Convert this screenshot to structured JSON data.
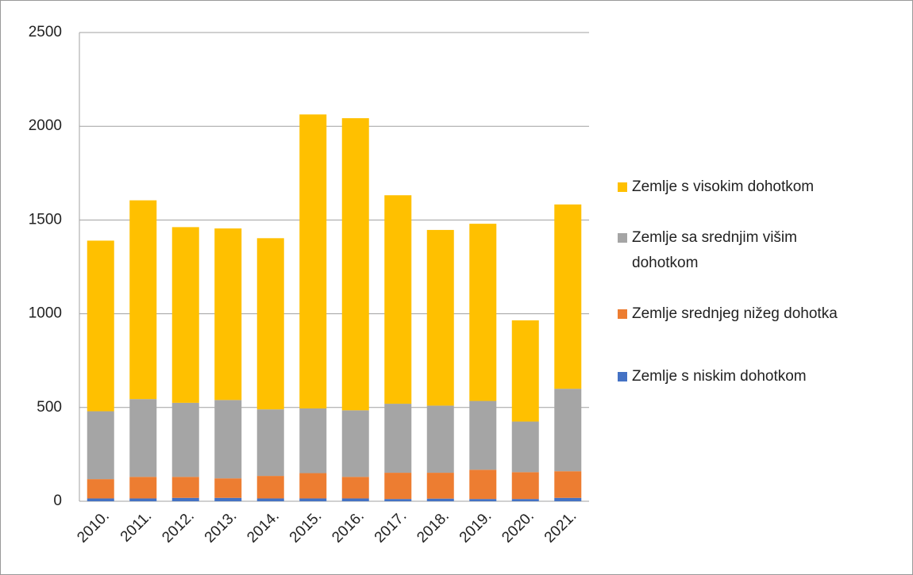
{
  "chart_data": {
    "type": "stacked_bar",
    "categories": [
      "2010.",
      "2011.",
      "2012.",
      "2013.",
      "2014.",
      "2015.",
      "2016.",
      "2017.",
      "2018.",
      "2019.",
      "2020.",
      "2021."
    ],
    "series": [
      {
        "name": "Zemlje s niskim dohotkom",
        "color": "#4472c4",
        "values": [
          15,
          15,
          18,
          18,
          15,
          15,
          15,
          12,
          14,
          12,
          12,
          18
        ]
      },
      {
        "name": "Zemlje srednjeg nižeg dohotka",
        "color": "#ed7d31",
        "values": [
          103,
          115,
          112,
          104,
          120,
          135,
          115,
          140,
          138,
          156,
          143,
          142
        ]
      },
      {
        "name": "Zemlje sa srednjim višim dohotkom",
        "color": "#a5a5a5",
        "values": [
          362,
          415,
          395,
          418,
          355,
          345,
          355,
          368,
          358,
          367,
          270,
          440
        ]
      },
      {
        "name": "Zemlje s visokim dohotkom",
        "color": "#ffc000",
        "values": [
          910,
          1060,
          937,
          915,
          913,
          1568,
          1558,
          1112,
          937,
          945,
          540,
          983
        ]
      }
    ],
    "ylim": [
      0,
      2500
    ],
    "yticks": [
      0,
      500,
      1000,
      1500,
      2000,
      2500
    ],
    "grid": true,
    "legend": "right"
  }
}
